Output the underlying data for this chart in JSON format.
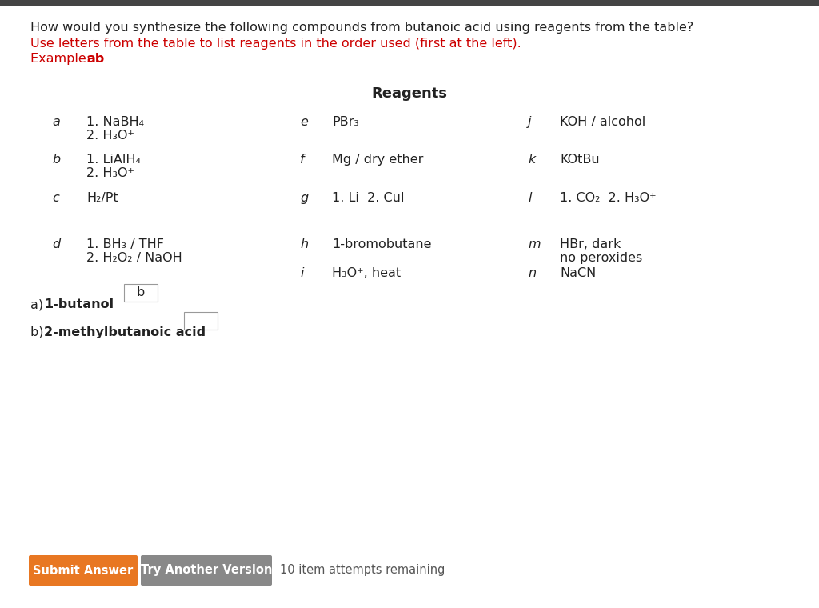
{
  "bg_color": "#ffffff",
  "top_bar_color": "#444444",
  "title_text": "How would you synthesize the following compounds from butanoic acid using reagents from the table?",
  "subtitle1": "Use letters from the table to list reagents in the order used (first at the left).",
  "subtitle2_normal": "Example: ",
  "subtitle2_bold": "ab",
  "reagents_title": "Reagents",
  "col1_rows": [
    {
      "letter": "a",
      "text1": "1. NaBH₄",
      "text2": "2. H₃O⁺"
    },
    {
      "letter": "b",
      "text1": "1. LiAlH₄",
      "text2": "2. H₃O⁺"
    },
    {
      "letter": "c",
      "text1": "H₂/Pt",
      "text2": ""
    },
    {
      "letter": "d",
      "text1": "1. BH₃ / THF",
      "text2": "2. H₂O₂ / NaOH"
    }
  ],
  "col2_rows": [
    {
      "letter": "e",
      "text1": "PBr₃",
      "text2": ""
    },
    {
      "letter": "f",
      "text1": "Mg / dry ether",
      "text2": ""
    },
    {
      "letter": "g",
      "text1": "1. Li  2. CuI",
      "text2": ""
    },
    {
      "letter": "h",
      "text1": "1-bromobutane",
      "text2": ""
    },
    {
      "letter": "i",
      "text1": "H₃O⁺, heat",
      "text2": ""
    }
  ],
  "col3_rows": [
    {
      "letter": "j",
      "text1": "KOH / alcohol",
      "text2": ""
    },
    {
      "letter": "k",
      "text1": "KOtBu",
      "text2": ""
    },
    {
      "letter": "l",
      "text1": "1. CO₂  2. H₃O⁺",
      "text2": ""
    },
    {
      "letter": "m",
      "text1": "HBr, dark",
      "text2": "no peroxides"
    },
    {
      "letter": "n",
      "text1": "NaCN",
      "text2": ""
    }
  ],
  "answer_a_label_normal": "a) ",
  "answer_a_label_bold": "1-butanol",
  "answer_a_value": "b",
  "answer_b_label_normal": "b) ",
  "answer_b_label_bold": "2-methylbutanoic acid",
  "answer_b_value": "",
  "button1_text": "Submit Answer",
  "button1_color": "#e87722",
  "button2_text": "Try Another Version",
  "button2_color": "#888888",
  "attempts_text": "10 item attempts remaining",
  "red_color": "#cc0000",
  "text_color": "#222222"
}
